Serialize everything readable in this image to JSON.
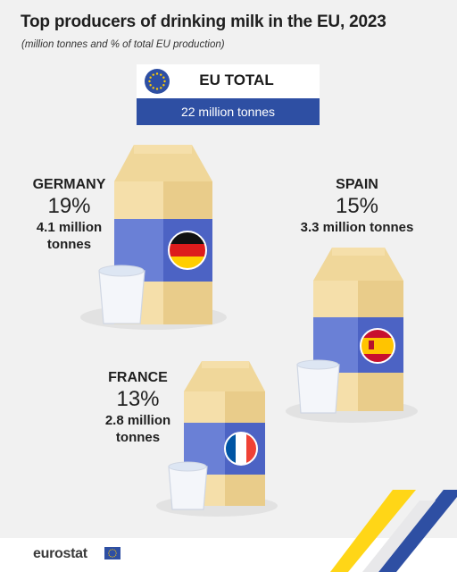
{
  "chart_data": {
    "type": "pictograph",
    "title": "Top producers of drinking milk in the EU, 2023",
    "subtitle": "(million tonnes and % of total EU production)",
    "total": {
      "label": "EU TOTAL",
      "value_text": "22 million tonnes",
      "value": 22,
      "unit": "million tonnes"
    },
    "countries": [
      {
        "name": "GERMANY",
        "share_text": "19%",
        "share": 19,
        "value_text": "4.1 million\ntonnes",
        "value": 4.1
      },
      {
        "name": "SPAIN",
        "share_text": "15%",
        "share": 15,
        "value_text": "3.3 million tonnes",
        "value": 3.3
      },
      {
        "name": "FRANCE",
        "share_text": "13%",
        "share": 13,
        "value_text": "2.8 million\ntonnes",
        "value": 2.8
      }
    ]
  },
  "colors": {
    "carton_light": "#f5dfaa",
    "carton_mid": "#e9cc8a",
    "carton_dark": "#d9b66c",
    "label_blue": "#6a80d6",
    "eu_blue": "#2e4fa3",
    "eu_yellow": "#ffcc00"
  },
  "footer": {
    "logo": "eurostat"
  }
}
